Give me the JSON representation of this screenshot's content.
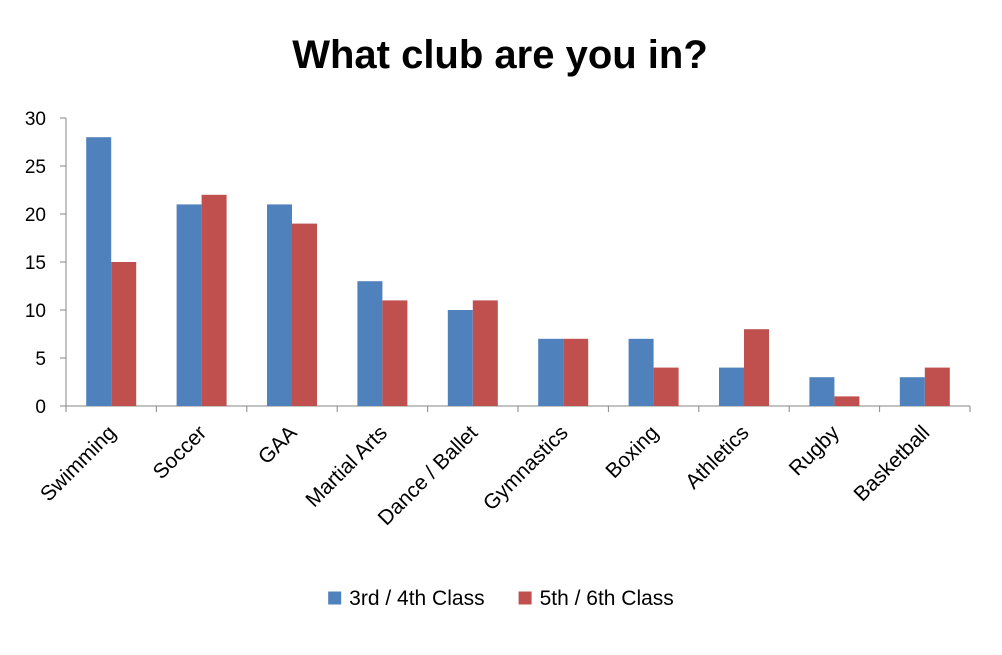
{
  "chart_data": {
    "type": "bar",
    "title": "What club are you in?",
    "xlabel": "",
    "ylabel": "",
    "ylim": [
      0,
      30
    ],
    "yticks": [
      0,
      5,
      10,
      15,
      20,
      25,
      30
    ],
    "grid": false,
    "legend_position": "bottom",
    "categories": [
      "Swimming",
      "Soccer",
      "GAA",
      "Martial Arts",
      "Dance / Ballet",
      "Gymnastics",
      "Boxing",
      "Athletics",
      "Rugby",
      "Basketball"
    ],
    "series": [
      {
        "name": "3rd / 4th Class",
        "color": "#4F81BD",
        "values": [
          28,
          21,
          21,
          13,
          10,
          7,
          7,
          4,
          3,
          3
        ]
      },
      {
        "name": "5th / 6th Class",
        "color": "#C0504D",
        "values": [
          15,
          22,
          19,
          11,
          11,
          7,
          4,
          8,
          1,
          4
        ]
      }
    ]
  }
}
